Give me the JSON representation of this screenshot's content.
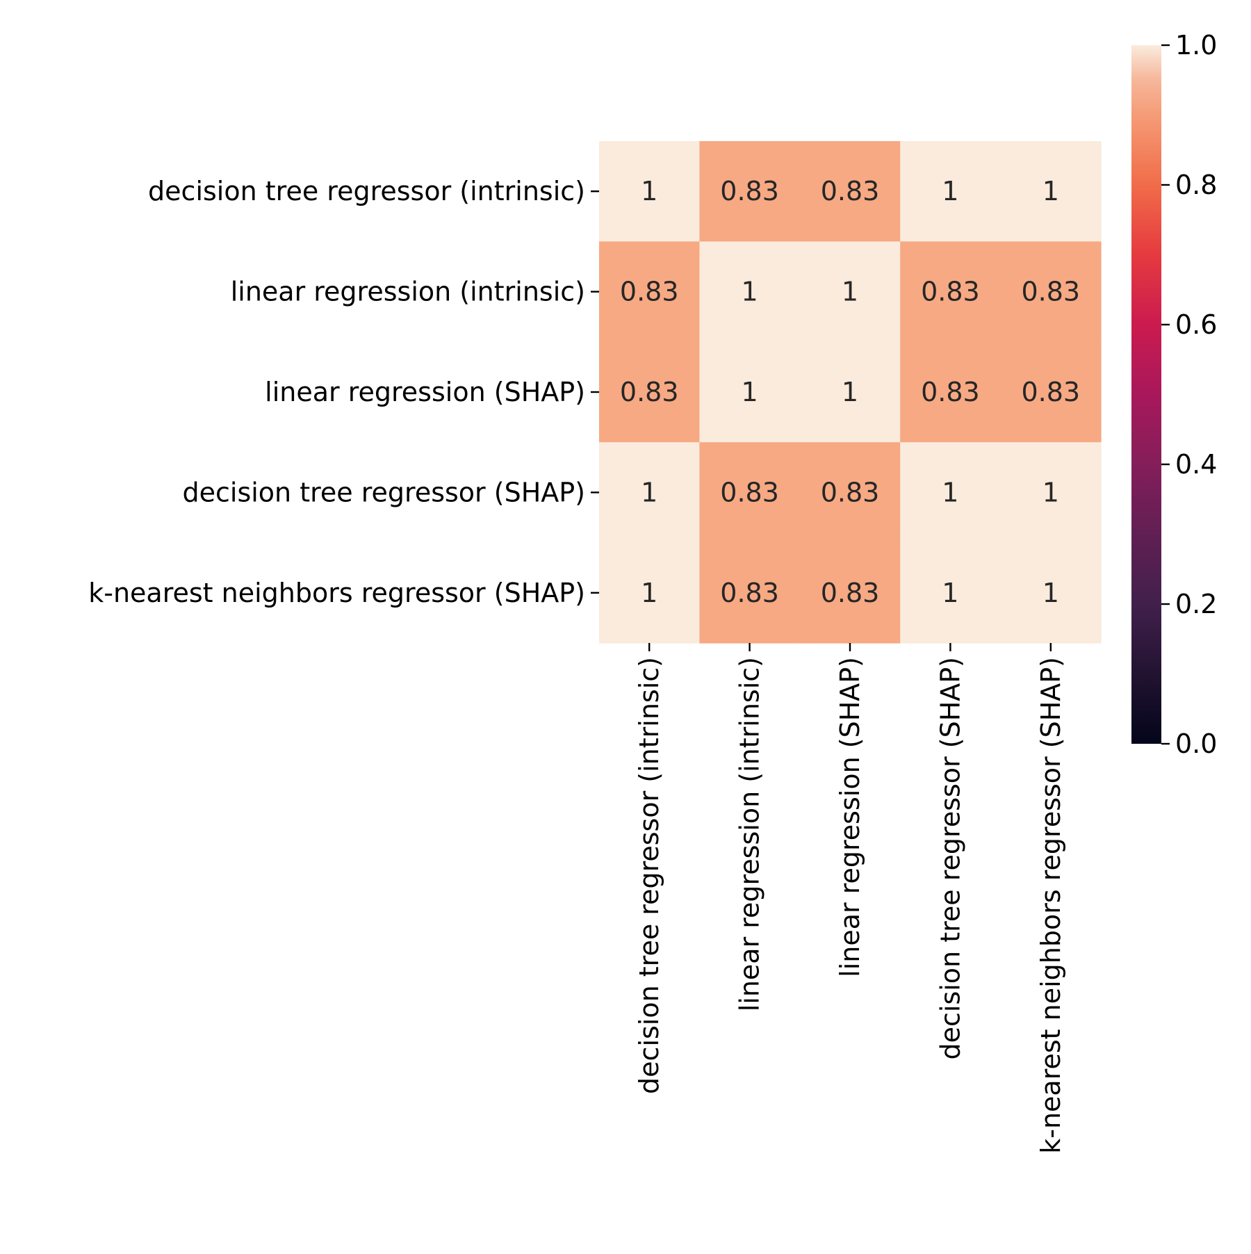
{
  "chart_data": {
    "type": "heatmap",
    "title": "",
    "xlabel": "",
    "ylabel": "",
    "rows": [
      "decision tree regressor (intrinsic)",
      "linear regression (intrinsic)",
      "linear regression (SHAP)",
      "decision tree regressor (SHAP)",
      "k-nearest neighbors regressor (SHAP)"
    ],
    "columns": [
      "decision tree regressor (intrinsic)",
      "linear regression (intrinsic)",
      "linear regression (SHAP)",
      "decision tree regressor (SHAP)",
      "k-nearest neighbors regressor (SHAP)"
    ],
    "values": [
      [
        1,
        0.83,
        0.83,
        1,
        1
      ],
      [
        0.83,
        1,
        1,
        0.83,
        0.83
      ],
      [
        0.83,
        1,
        1,
        0.83,
        0.83
      ],
      [
        1,
        0.83,
        0.83,
        1,
        1
      ],
      [
        1,
        0.83,
        0.83,
        1,
        1
      ]
    ],
    "annotations": [
      [
        "1",
        "0.83",
        "0.83",
        "1",
        "1"
      ],
      [
        "0.83",
        "1",
        "1",
        "0.83",
        "0.83"
      ],
      [
        "0.83",
        "1",
        "1",
        "0.83",
        "0.83"
      ],
      [
        "1",
        "0.83",
        "0.83",
        "1",
        "1"
      ],
      [
        "1",
        "0.83",
        "0.83",
        "1",
        "1"
      ]
    ],
    "colormap": "rocket",
    "colorbar": {
      "range": [
        0.0,
        1.0
      ],
      "ticks": [
        0.0,
        0.2,
        0.4,
        0.6,
        0.8,
        1.0
      ],
      "tick_labels": [
        "0.0",
        "0.2",
        "0.4",
        "0.6",
        "0.8",
        "1.0"
      ]
    },
    "colors": {
      "high_value_cell": "#faebdd",
      "mid_value_cell": "#f6a983",
      "annotation_text": "#262626",
      "tick_color": "#000000"
    }
  }
}
